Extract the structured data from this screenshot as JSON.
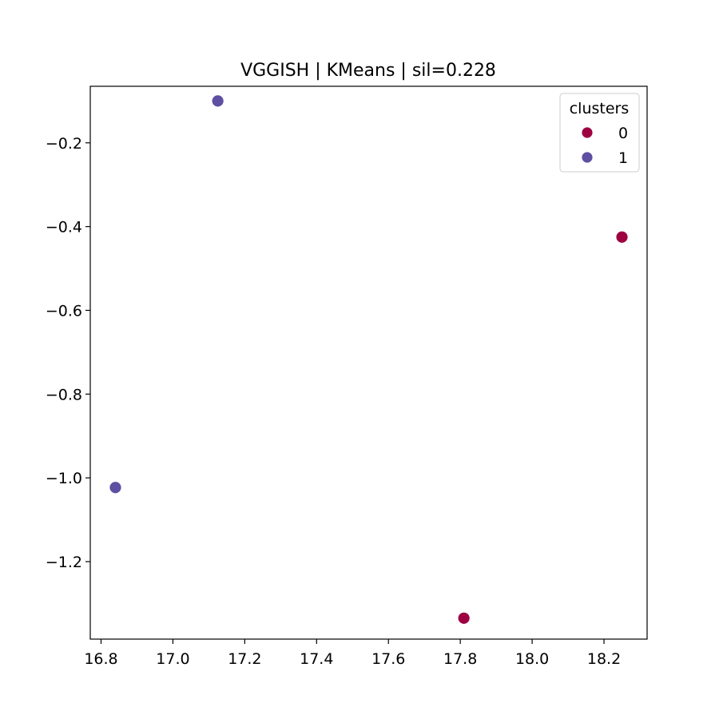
{
  "chart_data": {
    "type": "scatter",
    "title": "VGGISH | KMeans | sil=0.228",
    "xlabel": "",
    "ylabel": "",
    "xlim": [
      16.77,
      18.32
    ],
    "ylim": [
      -1.385,
      -0.065
    ],
    "xticks": [
      16.8,
      17.0,
      17.2,
      17.4,
      17.6,
      17.8,
      18.0,
      18.2
    ],
    "xtick_labels": [
      "16.8",
      "17.0",
      "17.2",
      "17.4",
      "17.6",
      "17.8",
      "18.0",
      "18.2"
    ],
    "yticks": [
      -0.2,
      -0.4,
      -0.6,
      -0.8,
      -1.0,
      -1.2
    ],
    "ytick_labels": [
      "−0.2",
      "−0.4",
      "−0.6",
      "−0.8",
      "−1.0",
      "−1.2"
    ],
    "grid": false,
    "legend": {
      "title": "clusters",
      "position": "top-right"
    },
    "series": [
      {
        "name": "0",
        "color": "#9e0142",
        "points": [
          {
            "x": 18.25,
            "y": -0.425
          },
          {
            "x": 17.81,
            "y": -1.335
          }
        ]
      },
      {
        "name": "1",
        "color": "#5e4fa2",
        "points": [
          {
            "x": 17.125,
            "y": -0.1
          },
          {
            "x": 16.84,
            "y": -1.023
          }
        ]
      }
    ]
  }
}
